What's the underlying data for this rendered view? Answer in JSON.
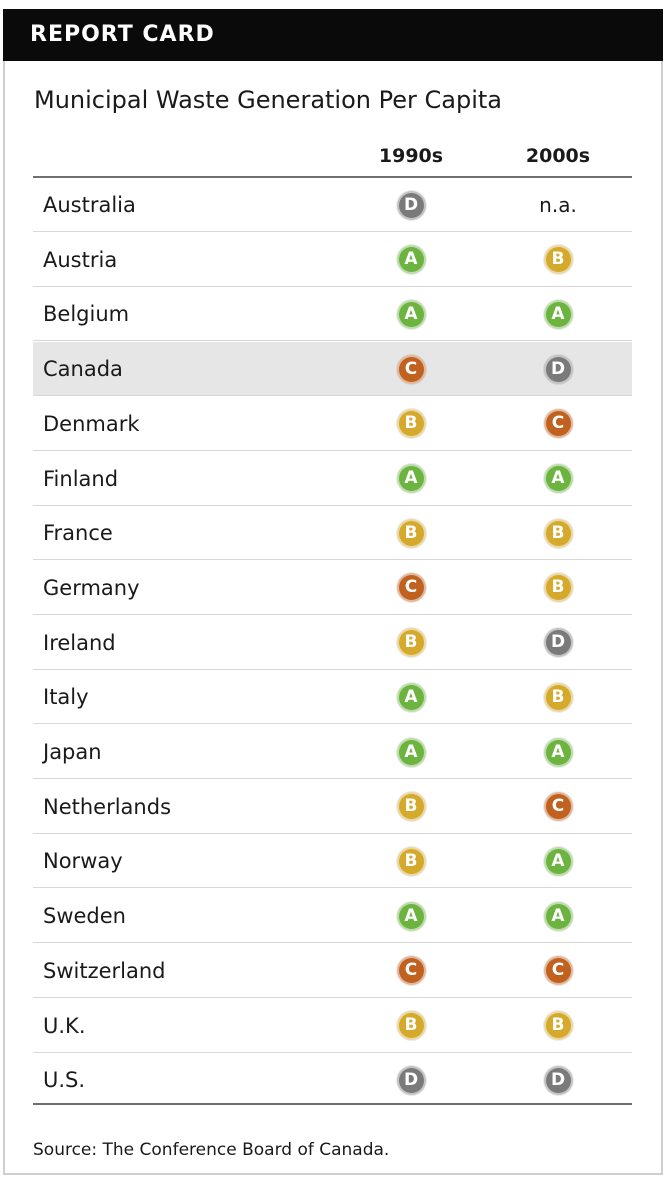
{
  "header": {
    "title": "REPORT CARD"
  },
  "subtitle": "Municipal Waste Generation Per Capita",
  "columns": {
    "label_1990": "1990s",
    "label_2000": "2000s"
  },
  "source": "Source: The Conference Board of Canada.",
  "grade_colors": {
    "A": "#6cb33f",
    "B": "#d4a92c",
    "C": "#c0611f",
    "D": "#7a7a7a"
  },
  "highlight_color": "#e6e6e6",
  "chart_data": {
    "type": "table",
    "title": "REPORT CARD",
    "subtitle": "Municipal Waste Generation Per Capita",
    "columns": [
      "1990s",
      "2000s"
    ],
    "rows": [
      {
        "country": "Australia",
        "grade_1990": "D",
        "grade_2000": "n.a."
      },
      {
        "country": "Austria",
        "grade_1990": "A",
        "grade_2000": "B"
      },
      {
        "country": "Belgium",
        "grade_1990": "A",
        "grade_2000": "A"
      },
      {
        "country": "Canada",
        "grade_1990": "C",
        "grade_2000": "D",
        "highlight": true
      },
      {
        "country": "Denmark",
        "grade_1990": "B",
        "grade_2000": "C"
      },
      {
        "country": "Finland",
        "grade_1990": "A",
        "grade_2000": "A"
      },
      {
        "country": "France",
        "grade_1990": "B",
        "grade_2000": "B"
      },
      {
        "country": "Germany",
        "grade_1990": "C",
        "grade_2000": "B"
      },
      {
        "country": "Ireland",
        "grade_1990": "B",
        "grade_2000": "D"
      },
      {
        "country": "Italy",
        "grade_1990": "A",
        "grade_2000": "B"
      },
      {
        "country": "Japan",
        "grade_1990": "A",
        "grade_2000": "A"
      },
      {
        "country": "Netherlands",
        "grade_1990": "B",
        "grade_2000": "C"
      },
      {
        "country": "Norway",
        "grade_1990": "B",
        "grade_2000": "A"
      },
      {
        "country": "Sweden",
        "grade_1990": "A",
        "grade_2000": "A"
      },
      {
        "country": "Switzerland",
        "grade_1990": "C",
        "grade_2000": "C"
      },
      {
        "country": "U.K.",
        "grade_1990": "B",
        "grade_2000": "B"
      },
      {
        "country": "U.S.",
        "grade_1990": "D",
        "grade_2000": "D"
      }
    ]
  }
}
